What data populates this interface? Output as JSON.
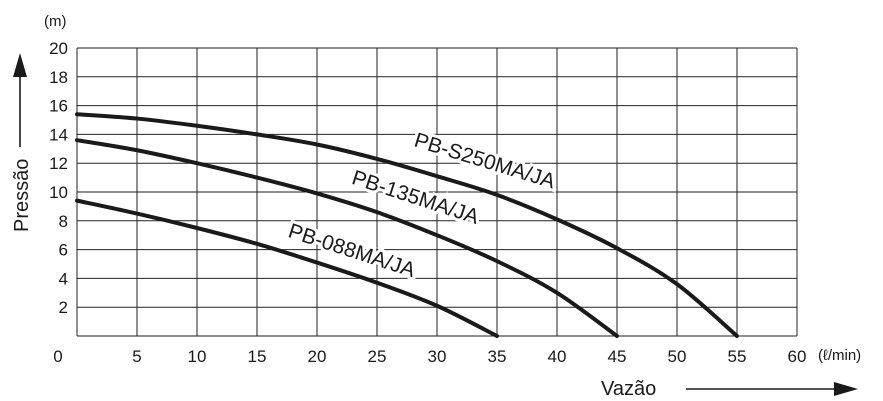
{
  "chart_data": {
    "type": "line",
    "xlabel": "Vazão",
    "ylabel": "Pressão",
    "x_unit": "(ℓ/min)",
    "y_unit": "(m)",
    "xlim": [
      0,
      60
    ],
    "ylim": [
      0,
      20
    ],
    "x_ticks": [
      0,
      5,
      10,
      15,
      20,
      25,
      30,
      35,
      40,
      45,
      50,
      55,
      60
    ],
    "y_ticks": [
      2,
      4,
      6,
      8,
      10,
      12,
      14,
      16,
      18,
      20
    ],
    "grid": true,
    "colors": {
      "curve": "#1a1a1a",
      "grid": "#222222"
    },
    "series": [
      {
        "name": "PB-S250MA/JA",
        "x": [
          0,
          5,
          10,
          15,
          20,
          25,
          30,
          35,
          40,
          45,
          50,
          55
        ],
        "y": [
          15.4,
          15.1,
          14.6,
          14.0,
          13.3,
          12.3,
          11.1,
          9.8,
          8.1,
          6.1,
          3.6,
          0
        ]
      },
      {
        "name": "PB-135MA/JA",
        "x": [
          0,
          5,
          10,
          15,
          20,
          25,
          30,
          35,
          40,
          45
        ],
        "y": [
          13.6,
          12.9,
          12.0,
          11.0,
          9.9,
          8.6,
          7.0,
          5.2,
          3.0,
          0
        ]
      },
      {
        "name": "PB-088MA/JA",
        "x": [
          0,
          5,
          10,
          15,
          20,
          25,
          30,
          35
        ],
        "y": [
          9.4,
          8.5,
          7.5,
          6.4,
          5.1,
          3.7,
          2.1,
          0
        ]
      }
    ]
  }
}
